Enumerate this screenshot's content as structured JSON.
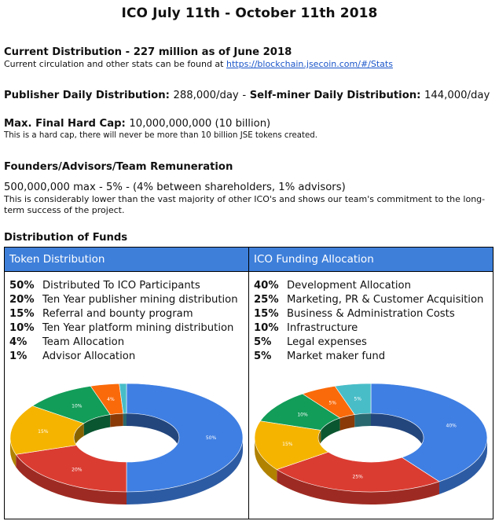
{
  "title": "ICO July 11th - October 11th 2018",
  "current_distribution": {
    "heading": "Current Distribution - 227 million as of June 2018",
    "note_prefix": "Current circulation and other stats can be found at ",
    "link_text": "https://blockchain.jsecoin.com/#/Stats"
  },
  "daily": {
    "publisher_label": "Publisher Daily Distribution:",
    "publisher_value": "288,000/day",
    "separator": "-",
    "selfminer_label": "Self-miner Daily Distribution:",
    "selfminer_value": "144,000/day"
  },
  "hard_cap": {
    "label": "Max. Final Hard Cap:",
    "value": "10,000,000,000 (10 billion)",
    "note": "This is a hard cap, there will never be more than 10 billion  JSE tokens created."
  },
  "founders": {
    "heading": "Founders/Advisors/Team Remuneration",
    "line": "500,000,000 max - 5% - (4% between shareholders, 1% advisors)",
    "note": "This is considerably lower than the vast majority of other ICO's and shows our team's commitment to the long-term success of the project."
  },
  "funds_heading": "Distribution of Funds",
  "token_distribution": {
    "header": "Token Distribution",
    "items": [
      {
        "pct": "50%",
        "label": "Distributed To ICO Participants"
      },
      {
        "pct": "20%",
        "label": "Ten Year publisher mining distribution"
      },
      {
        "pct": "15%",
        "label": "Referral and bounty program"
      },
      {
        "pct": "10%",
        "label": "Ten Year platform mining distribution"
      },
      {
        "pct": "4%",
        "label": "Team Allocation"
      },
      {
        "pct": "1%",
        "label": "Advisor Allocation"
      }
    ]
  },
  "ico_funding": {
    "header": "ICO Funding Allocation",
    "items": [
      {
        "pct": "40%",
        "label": "Development Allocation"
      },
      {
        "pct": "25%",
        "label": "Marketing, PR & Customer Acquisition"
      },
      {
        "pct": "15%",
        "label": "Business & Administration Costs"
      },
      {
        "pct": "10%",
        "label": "Infrastructure"
      },
      {
        "pct": "5%",
        "label": "Legal expenses"
      },
      {
        "pct": "5%",
        "label": "Market maker fund"
      }
    ]
  },
  "chart_data": [
    {
      "type": "pie",
      "donut": true,
      "categories": [
        "Distributed To ICO Participants",
        "Ten Year publisher mining distribution",
        "Referral and bounty program",
        "Ten Year platform mining distribution",
        "Team Allocation",
        "Advisor Allocation"
      ],
      "values": [
        50,
        20,
        15,
        10,
        4,
        1
      ],
      "slice_labels": [
        "50%",
        "20%",
        "15%",
        "10%",
        "4%",
        ""
      ],
      "colors": [
        "#3f7fe3",
        "#db3c31",
        "#f5b400",
        "#129d59",
        "#fa6a0a",
        "#48bdc8"
      ]
    },
    {
      "type": "pie",
      "donut": true,
      "categories": [
        "Development Allocation",
        "Marketing, PR & Customer Acquisition",
        "Business & Administration Costs",
        "Infrastructure",
        "Legal expenses",
        "Market maker fund"
      ],
      "values": [
        40,
        25,
        15,
        10,
        5,
        5
      ],
      "slice_labels": [
        "40%",
        "25%",
        "15%",
        "10%",
        "5%",
        "5%"
      ],
      "colors": [
        "#3f7fe3",
        "#db3c31",
        "#f5b400",
        "#129d59",
        "#fa6a0a",
        "#48bdc8"
      ]
    }
  ]
}
